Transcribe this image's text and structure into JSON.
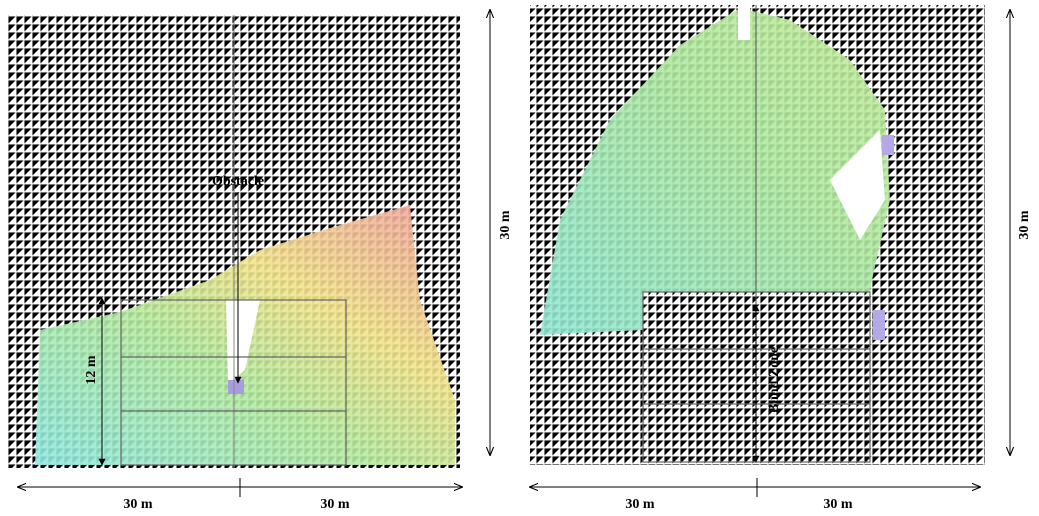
{
  "left": {
    "annotation": "Obstacle",
    "height_label": "12 m",
    "width_labels": [
      "30 m",
      "30 m"
    ],
    "depth_label": "30 m"
  },
  "right": {
    "annotation": "Blind Zone",
    "width_labels": [
      "30 m",
      "30 m"
    ],
    "depth_label": "30 m"
  }
}
